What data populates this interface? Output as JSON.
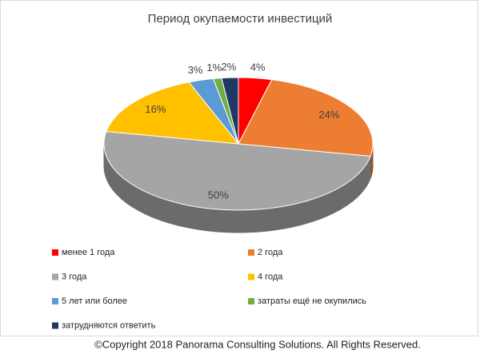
{
  "chart_data": {
    "type": "pie3d",
    "title": "Период окупаемости инвестиций",
    "categories": [
      "менее 1 года",
      "2 года",
      "3 года",
      "4 года",
      "5 лет или более",
      "затраты ещё не окупились",
      "затрудняются ответить"
    ],
    "values": [
      4,
      24,
      50,
      16,
      3,
      1,
      2
    ],
    "value_labels": [
      "4%",
      "24%",
      "50%",
      "16%",
      "3%",
      "1%",
      "2%"
    ],
    "colors": [
      "#ff0000",
      "#ed7d31",
      "#a5a5a5",
      "#ffc000",
      "#5b9bd5",
      "#70ad47",
      "#1f3864"
    ],
    "legend": "bottom"
  },
  "copyright": "©Copyright 2018 Panorama Consulting Solutions.  All Rights Reserved."
}
